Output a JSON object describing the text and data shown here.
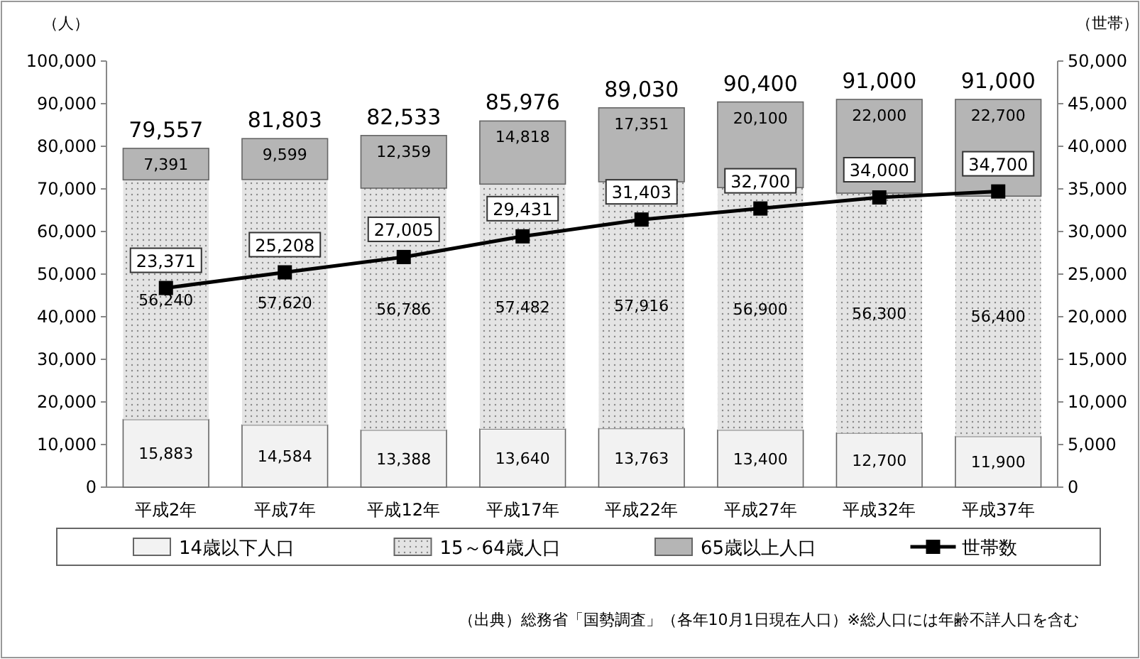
{
  "chart_data": {
    "type": "bar",
    "stacked": true,
    "categories": [
      "平成2年",
      "平成7年",
      "平成12年",
      "平成17年",
      "平成22年",
      "平成27年",
      "平成32年",
      "平成37年"
    ],
    "series": [
      {
        "name": "14歳以下人口",
        "color": "#f2f2f2",
        "values": [
          15883,
          14584,
          13388,
          13640,
          13763,
          13400,
          12700,
          11900
        ],
        "value_labels": [
          "15,883",
          "14,584",
          "13,388",
          "13,640",
          "13,763",
          "13,400",
          "12,700",
          "11,900"
        ]
      },
      {
        "name": "15～64歳人口",
        "color": "#e4e4e4",
        "values": [
          56240,
          57620,
          56786,
          57482,
          57916,
          56900,
          56300,
          56400
        ],
        "value_labels": [
          "56,240",
          "57,620",
          "56,786",
          "57,482",
          "57,916",
          "56,900",
          "56,300",
          "56,400"
        ]
      },
      {
        "name": "65歳以上人口",
        "color": "#b5b5b5",
        "values": [
          7391,
          9599,
          12359,
          14818,
          17351,
          20100,
          22000,
          22700
        ],
        "value_labels": [
          "7,391",
          "9,599",
          "12,359",
          "14,818",
          "17,351",
          "20,100",
          "22,000",
          "22,700"
        ]
      },
      {
        "name": "世帯数",
        "type": "line",
        "axis": "y2",
        "color": "#000000",
        "values": [
          23371,
          25208,
          27005,
          29431,
          31403,
          32700,
          34000,
          34700
        ],
        "value_labels": [
          "23,371",
          "25,208",
          "27,005",
          "29,431",
          "31,403",
          "32,700",
          "34,000",
          "34,700"
        ]
      }
    ],
    "ylabel": "（人）",
    "y2label": "（世帯）",
    "ylim": [
      0,
      100000
    ],
    "yticks": [
      0,
      {
        "value": 10000,
        "label": "10,000"
      },
      {
        "value": 20000,
        "label": "20,000"
      },
      {
        "value": 30000,
        "label": "30,000"
      },
      {
        "value": 40000,
        "label": "40,000"
      },
      {
        "value": 50000,
        "label": "50,000"
      },
      {
        "value": 60000,
        "label": "60,000"
      },
      {
        "value": 70000,
        "label": "70,000"
      },
      {
        "value": 80000,
        "label": "80,000"
      },
      {
        "value": 90000,
        "label": "90,000"
      },
      {
        "value": 100000,
        "label": "100,000"
      }
    ],
    "y2lim": [
      0,
      50000
    ],
    "y2ticks": [
      0,
      {
        "value": 5000,
        "label": "5,000"
      },
      {
        "value": 10000,
        "label": "10,000"
      },
      {
        "value": 15000,
        "label": "15,000"
      },
      {
        "value": 20000,
        "label": "20,000"
      },
      {
        "value": 25000,
        "label": "25,000"
      },
      {
        "value": 30000,
        "label": "30,000"
      },
      {
        "value": 35000,
        "label": "35,000"
      },
      {
        "value": 40000,
        "label": "40,000"
      },
      {
        "value": 45000,
        "label": "45,000"
      },
      {
        "value": 50000,
        "label": "50,000"
      }
    ],
    "marker": "square",
    "legend": "bottom",
    "annotations": [
      {
        "text": "79,557",
        "x": "平成2年",
        "y": 79557
      },
      {
        "text": "81,803",
        "x": "平成7年",
        "y": 81803
      },
      {
        "text": "82,533",
        "x": "平成12年",
        "y": 82533
      },
      {
        "text": "85,976",
        "x": "平成17年",
        "y": 85976
      },
      {
        "text": "89,030",
        "x": "平成22年",
        "y": 89030
      },
      {
        "text": "90,400",
        "x": "平成27年",
        "y": 90400
      },
      {
        "text": "91,000",
        "x": "平成32年",
        "y": 91000
      },
      {
        "text": "91,000",
        "x": "平成37年",
        "y": 91000
      },
      "（出典）総務省「国勢調査」（各年10月1日現在人口）※総人口には年齢不詳人口を含む"
    ]
  }
}
